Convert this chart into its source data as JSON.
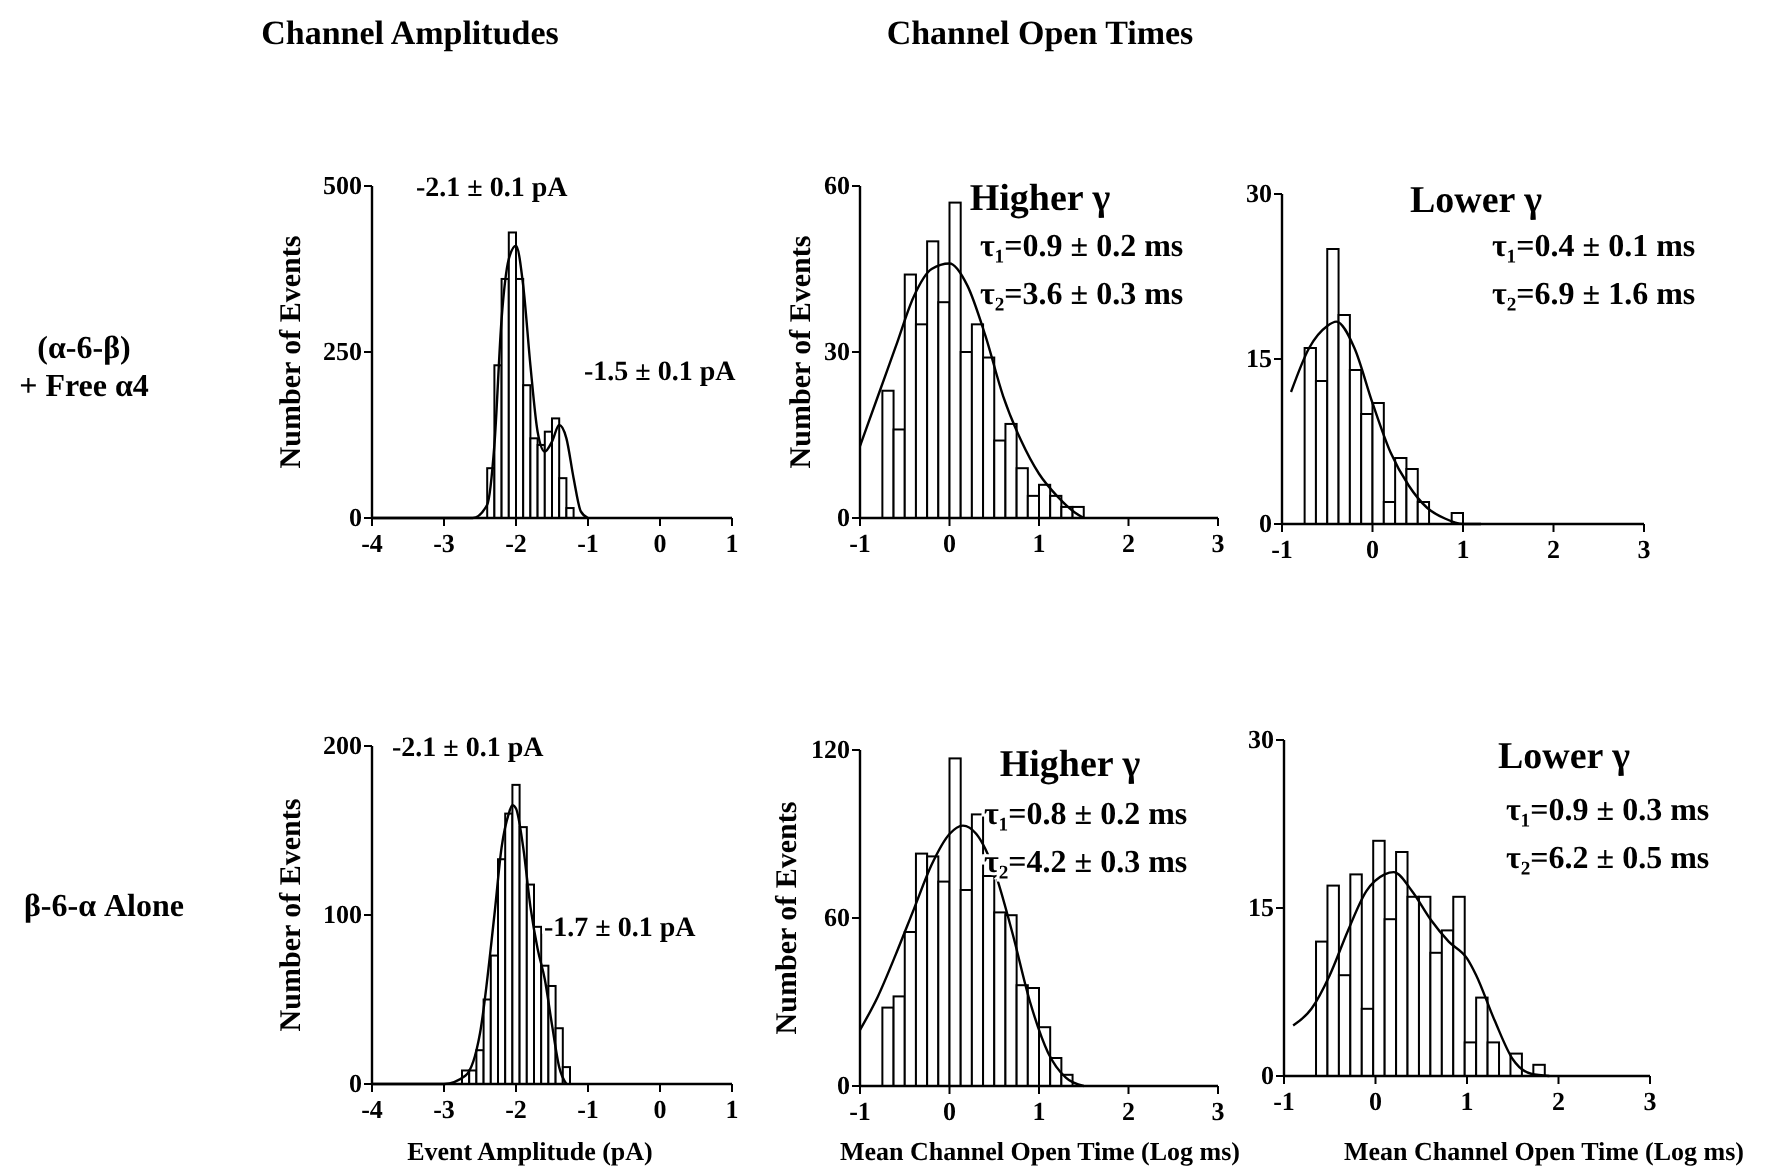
{
  "chart_data": [
    {
      "type": "histogram",
      "subtitle": "Channel Amplitudes",
      "ylabel": "Number of Events",
      "annotations": [
        "(α-6-β)\n+ Free α4",
        "-2.1 ± 0.1 pA",
        "-1.5 ± 0.1 pA"
      ],
      "bins": [
        -2.4,
        -2.3,
        -2.2,
        -2.1,
        -2.0,
        -1.9,
        -1.8,
        -1.7,
        -1.6,
        -1.5,
        -1.4,
        -1.3,
        -1.2
      ],
      "values": [
        75,
        230,
        360,
        430,
        360,
        200,
        120,
        110,
        130,
        150,
        60,
        15
      ],
      "color": "#ffffff",
      "series": [
        {
          "type": "line",
          "color": "#000000",
          "x": [
            -4,
            -2.6,
            -2.4,
            -2.3,
            -2.2,
            -2.1,
            -2.0,
            -1.9,
            -1.8,
            -1.7,
            -1.6,
            -1.5,
            -1.4,
            -1.3,
            -1.2,
            -1.1,
            -1.0
          ],
          "values": [
            0,
            0,
            20,
            110,
            300,
            390,
            410,
            350,
            230,
            130,
            100,
            115,
            140,
            120,
            60,
            10,
            0
          ]
        }
      ],
      "xlim": [
        -4,
        1
      ],
      "ylim": [
        0,
        500
      ],
      "xticks": [
        -4,
        -3,
        -2,
        -1,
        0,
        1
      ],
      "yticks": [
        0,
        250,
        500
      ]
    },
    {
      "type": "histogram",
      "subtitle": "Channel Open Times",
      "title": "Higher γ",
      "ylabel": "Number of Events",
      "annotations": [
        "τ₁=0.9 ± 0.2 ms",
        "τ₂=3.6 ± 0.3 ms"
      ],
      "bins": [
        -0.75,
        -0.625,
        -0.5,
        -0.375,
        -0.25,
        -0.125,
        0,
        0.125,
        0.25,
        0.375,
        0.5,
        0.625,
        0.75,
        0.875,
        1.0,
        1.125,
        1.25,
        1.375,
        1.5
      ],
      "values": [
        23,
        16,
        44,
        35,
        50,
        39,
        57,
        30,
        35,
        29,
        14,
        17,
        9,
        4,
        6,
        4,
        2,
        2
      ],
      "color": "#ffffff",
      "series": [
        {
          "type": "line",
          "color": "#000000",
          "x": [
            -1,
            -0.8,
            -0.6,
            -0.4,
            -0.2,
            0,
            0.2,
            0.4,
            0.6,
            0.8,
            1.0,
            1.2,
            1.4,
            1.5
          ],
          "values": [
            13,
            22,
            31,
            40,
            45,
            46,
            42,
            33,
            22,
            14,
            8,
            4,
            1,
            0
          ]
        }
      ],
      "xlim": [
        -1,
        3
      ],
      "ylim": [
        0,
        60
      ],
      "xticks": [
        -1,
        0,
        1,
        2,
        3
      ],
      "yticks": [
        0,
        30,
        60
      ]
    },
    {
      "type": "histogram",
      "title": "Lower γ",
      "annotations": [
        "τ₁=0.4 ± 0.1 ms",
        "τ₂=6.9 ± 1.6 ms"
      ],
      "bins": [
        -0.75,
        -0.625,
        -0.5,
        -0.375,
        -0.25,
        -0.125,
        0,
        0.125,
        0.25,
        0.375,
        0.5,
        0.625,
        0.75,
        0.875,
        1.0
      ],
      "values": [
        16,
        13,
        25,
        19,
        14,
        10,
        11,
        2,
        6,
        5,
        2,
        0,
        0,
        1
      ],
      "color": "#ffffff",
      "series": [
        {
          "type": "line",
          "color": "#000000",
          "x": [
            -0.9,
            -0.7,
            -0.5,
            -0.4,
            -0.2,
            0,
            0.2,
            0.4,
            0.6,
            0.8,
            1.0,
            1.2
          ],
          "values": [
            12,
            16,
            18,
            18.4,
            16,
            11,
            6.5,
            3.5,
            1.5,
            0.5,
            0,
            0
          ]
        }
      ],
      "xlim": [
        -1,
        3
      ],
      "ylim": [
        0,
        30
      ],
      "xticks": [
        -1,
        0,
        1,
        2,
        3
      ],
      "yticks": [
        0,
        15,
        30
      ]
    },
    {
      "type": "histogram",
      "xlabel": "Event Amplitude (pA)",
      "ylabel": "Number of Events",
      "annotations": [
        "β-6-α Alone",
        "-2.1 ± 0.1 pA",
        "-1.7 ± 0.1 pA"
      ],
      "bins": [
        -2.75,
        -2.65,
        -2.55,
        -2.45,
        -2.35,
        -2.25,
        -2.15,
        -2.05,
        -1.95,
        -1.85,
        -1.75,
        -1.65,
        -1.55,
        -1.45,
        -1.35,
        -1.25
      ],
      "values": [
        8,
        8,
        20,
        50,
        76,
        133,
        160,
        177,
        152,
        118,
        93,
        70,
        58,
        33,
        10
      ],
      "color": "#ffffff",
      "series": [
        {
          "type": "line",
          "color": "#000000",
          "x": [
            -4,
            -3,
            -2.7,
            -2.5,
            -2.3,
            -2.2,
            -2.1,
            -2.05,
            -2.0,
            -1.9,
            -1.8,
            -1.7,
            -1.6,
            -1.5,
            -1.4,
            -1.3
          ],
          "values": [
            0,
            0,
            5,
            30,
            100,
            140,
            160,
            165,
            163,
            140,
            105,
            80,
            62,
            35,
            10,
            0
          ]
        }
      ],
      "xlim": [
        -4,
        1
      ],
      "ylim": [
        0,
        200
      ],
      "xticks": [
        -4,
        -3,
        -2,
        -1,
        0,
        1
      ],
      "yticks": [
        0,
        100,
        200
      ]
    },
    {
      "type": "histogram",
      "title": "Higher γ",
      "xlabel": "Mean Channel Open Time (Log ms)",
      "ylabel": "Number of Events",
      "annotations": [
        "τ₁=0.8 ± 0.2 ms",
        "τ₂=4.2 ± 0.3 ms"
      ],
      "bins": [
        -0.75,
        -0.625,
        -0.5,
        -0.375,
        -0.25,
        -0.125,
        0,
        0.125,
        0.25,
        0.375,
        0.5,
        0.625,
        0.75,
        0.875,
        1.0,
        1.125,
        1.25,
        1.375
      ],
      "values": [
        28,
        32,
        55,
        83,
        82,
        73,
        117,
        70,
        97,
        75,
        62,
        61,
        36,
        35,
        21,
        10,
        4
      ],
      "color": "#ffffff",
      "series": [
        {
          "type": "line",
          "color": "#000000",
          "x": [
            -1,
            -0.8,
            -0.6,
            -0.4,
            -0.2,
            0,
            0.15,
            0.3,
            0.5,
            0.7,
            0.9,
            1.1,
            1.3,
            1.5
          ],
          "values": [
            20,
            32,
            47,
            63,
            79,
            90,
            93,
            90,
            77,
            55,
            30,
            12,
            3,
            0
          ]
        }
      ],
      "xlim": [
        -1,
        3
      ],
      "ylim": [
        0,
        120
      ],
      "xticks": [
        -1,
        0,
        1,
        2,
        3
      ],
      "yticks": [
        0,
        60,
        120
      ]
    },
    {
      "type": "histogram",
      "title": "Lower γ",
      "xlabel": "Mean Channel Open Time (Log ms)",
      "annotations": [
        "τ₁=0.9 ± 0.3 ms",
        "τ₂=6.2 ± 0.5 ms"
      ],
      "bins": [
        -0.65,
        -0.525,
        -0.4,
        -0.275,
        -0.15,
        -0.025,
        0.1,
        0.225,
        0.35,
        0.475,
        0.6,
        0.725,
        0.85,
        0.975,
        1.1,
        1.225,
        1.35,
        1.475,
        1.6,
        1.725,
        1.85
      ],
      "values": [
        12,
        17,
        9,
        18,
        6,
        21,
        14,
        20,
        16,
        16,
        11,
        13,
        16,
        3,
        7,
        3,
        0,
        2,
        0,
        1
      ],
      "color": "#ffffff",
      "series": [
        {
          "type": "line",
          "color": "#000000",
          "x": [
            -0.9,
            -0.7,
            -0.5,
            -0.3,
            -0.1,
            0.1,
            0.2,
            0.4,
            0.6,
            0.8,
            1.0,
            1.1,
            1.3,
            1.5,
            1.7,
            1.9
          ],
          "values": [
            4.5,
            6,
            9,
            13,
            16.5,
            18,
            18.2,
            16.5,
            14,
            12,
            10.5,
            9,
            5,
            1.5,
            0.2,
            0
          ]
        }
      ],
      "xlim": [
        -1,
        3
      ],
      "ylim": [
        0,
        30
      ],
      "xticks": [
        -1,
        0,
        1,
        2,
        3
      ],
      "yticks": [
        0,
        15,
        30
      ]
    }
  ]
}
